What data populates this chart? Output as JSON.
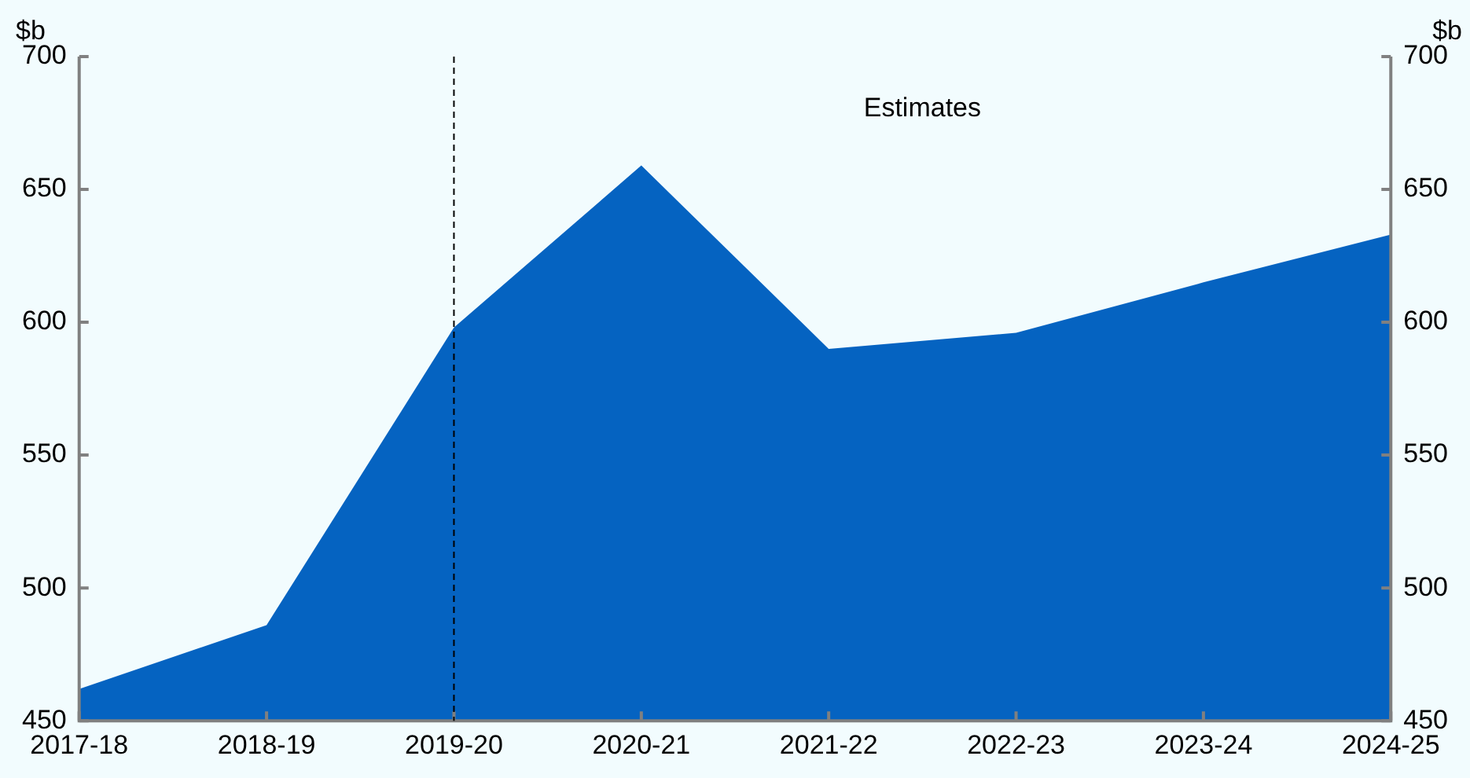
{
  "chart_data": {
    "type": "area",
    "ylabel": "$b",
    "y2label": "$b",
    "categories": [
      "2017-18",
      "2018-19",
      "2019-20",
      "2020-21",
      "2021-22",
      "2022-23",
      "2023-24",
      "2024-25"
    ],
    "series": [
      {
        "color": "#0563c1",
        "values": [
          462,
          486,
          598,
          659,
          590,
          596,
          615,
          633
        ]
      }
    ],
    "ylim": [
      450,
      700
    ],
    "yticks": [
      450,
      500,
      550,
      600,
      650,
      700
    ],
    "y2lim": [
      450,
      700
    ],
    "y2ticks": [
      450,
      500,
      550,
      600,
      650,
      700
    ],
    "ref_lines": [
      {
        "axis": "x",
        "value": "2019-20",
        "color": "#000000",
        "line_style": "dashed"
      }
    ],
    "annotations": [
      "Estimates"
    ],
    "grid": false,
    "legend": false
  }
}
